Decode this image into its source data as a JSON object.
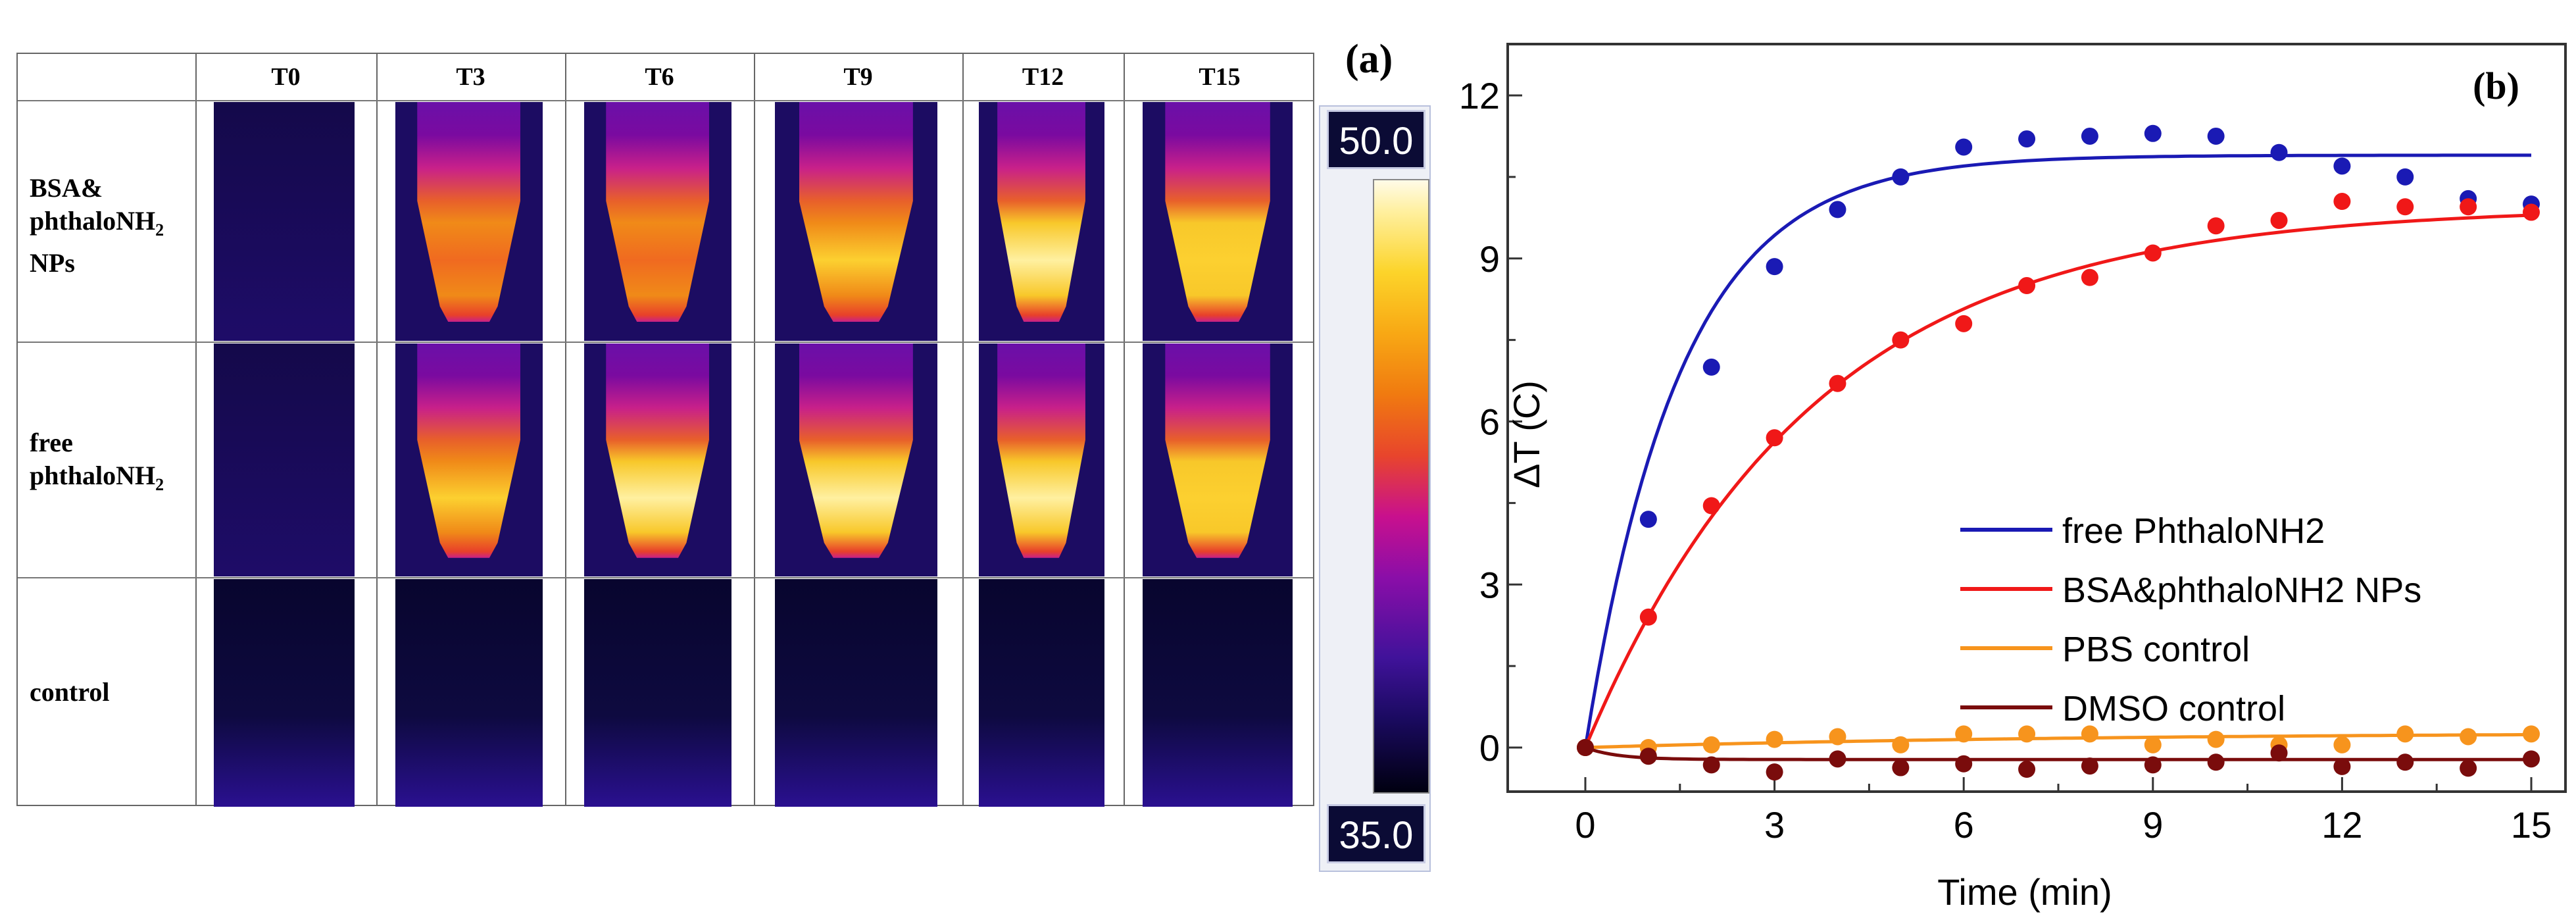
{
  "panel_a": {
    "label": "(a)",
    "columns": [
      "T0",
      "T3",
      "T6",
      "T9",
      "T12",
      "T15"
    ],
    "rows": [
      {
        "label_lines": [
          "BSA&",
          "phthaloNH",
          "NPs"
        ],
        "sub": "2",
        "intensity": [
          0.0,
          0.6,
          0.75,
          0.85,
          0.92,
          0.9
        ]
      },
      {
        "label_lines": [
          "free",
          "phthaloNH"
        ],
        "sub": "2",
        "intensity": [
          0.0,
          0.8,
          0.95,
          1.0,
          0.92,
          0.88
        ]
      },
      {
        "label_lines": [
          "control"
        ],
        "sub": "",
        "intensity": [
          0.0,
          0.0,
          0.0,
          0.0,
          0.0,
          0.0
        ]
      }
    ],
    "colorbar": {
      "max": "50.0",
      "min": "35.0"
    }
  },
  "chart_data": {
    "type": "scatter",
    "panel_label": "(b)",
    "xlabel": "Time (min)",
    "ylabel": "ΔT (C)",
    "xlim": [
      -0.5,
      15.4
    ],
    "ylim": [
      -0.75,
      13
    ],
    "xticks": [
      0,
      3,
      6,
      9,
      12,
      15
    ],
    "yticks": [
      0,
      3,
      6,
      9,
      12
    ],
    "legend_position": "center-right",
    "x": [
      0,
      1,
      2,
      3,
      4,
      5,
      6,
      7,
      8,
      9,
      10,
      11,
      12,
      13,
      14,
      15
    ],
    "series": [
      {
        "name": "free PhthaloNH2",
        "color": "#1a1ab4",
        "values": [
          0,
          4.2,
          7.0,
          8.85,
          9.9,
          10.5,
          11.05,
          11.2,
          11.25,
          11.3,
          11.25,
          10.95,
          10.7,
          10.5,
          10.1,
          10.0
        ],
        "fit": {
          "amplitude": 10.9,
          "tau": 1.5
        }
      },
      {
        "name": "BSA&phthaloNH2 NPs",
        "color": "#f01818",
        "values": [
          0,
          2.4,
          4.45,
          5.7,
          6.7,
          7.5,
          7.8,
          8.5,
          8.65,
          9.1,
          9.6,
          9.7,
          10.05,
          9.95,
          9.95,
          9.85
        ],
        "fit": {
          "amplitude": 9.95,
          "tau": 3.6
        }
      },
      {
        "name": "PBS control",
        "color": "#f7941d",
        "values": [
          0,
          0,
          0.05,
          0.15,
          0.2,
          0.05,
          0.25,
          0.25,
          0.25,
          0.05,
          0.15,
          0.05,
          0.05,
          0.25,
          0.2,
          0.25
        ],
        "fit": {
          "amplitude": 0.28,
          "tau": 8
        }
      },
      {
        "name": "DMSO control",
        "color": "#7a0c0c",
        "values": [
          0,
          -0.16,
          -0.32,
          -0.45,
          -0.21,
          -0.37,
          -0.3,
          -0.4,
          -0.34,
          -0.32,
          -0.27,
          -0.1,
          -0.35,
          -0.27,
          -0.38,
          -0.21
        ],
        "fit": {
          "amplitude": -0.22,
          "tau": 0.5
        }
      }
    ]
  }
}
